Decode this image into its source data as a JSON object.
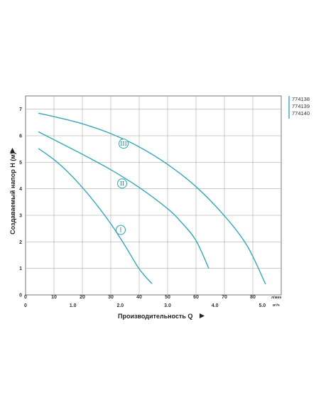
{
  "chart_data": {
    "type": "line",
    "ylabel": "Создаваемый напор H (м)",
    "xlabel": "Производительность Q",
    "x_unit_primary": "л/мин",
    "x_unit_secondary": "м³/ч",
    "xlim": [
      0,
      90
    ],
    "ylim": [
      0,
      7.5
    ],
    "x_ticks_lpm": [
      "0",
      "10",
      "20",
      "30",
      "40",
      "50",
      "60",
      "70",
      "80"
    ],
    "x_ticks_m3h": [
      "0",
      "1.0",
      "2.0",
      "3.0",
      "4.0",
      "5.0"
    ],
    "y_ticks": [
      "0",
      "1",
      "2",
      "3",
      "4",
      "5",
      "6",
      "7"
    ],
    "grid": true,
    "legend_position": "top-right",
    "series_color": "#35a9b5",
    "legend": [
      "774138",
      "774139",
      "774140"
    ],
    "series": [
      {
        "name": "I",
        "label_at": [
          33.5,
          2.45
        ],
        "x": [
          4.5,
          10,
          15,
          20,
          25,
          30,
          35,
          40,
          44.5
        ],
        "y": [
          5.52,
          5.1,
          4.62,
          4.05,
          3.4,
          2.68,
          1.86,
          0.98,
          0.42
        ]
      },
      {
        "name": "II",
        "label_at": [
          34,
          4.2
        ],
        "x": [
          4.5,
          10,
          20,
          30,
          40,
          50,
          55,
          60,
          64.5
        ],
        "y": [
          6.15,
          5.85,
          5.3,
          4.72,
          4.05,
          3.25,
          2.72,
          2.05,
          1.0
        ]
      },
      {
        "name": "III",
        "label_at": [
          34.5,
          5.7
        ],
        "x": [
          4.5,
          10,
          20,
          30,
          40,
          50,
          60,
          70,
          78,
          84.5
        ],
        "y": [
          6.85,
          6.72,
          6.45,
          6.08,
          5.58,
          4.92,
          4.08,
          2.98,
          1.85,
          0.4
        ]
      }
    ]
  }
}
